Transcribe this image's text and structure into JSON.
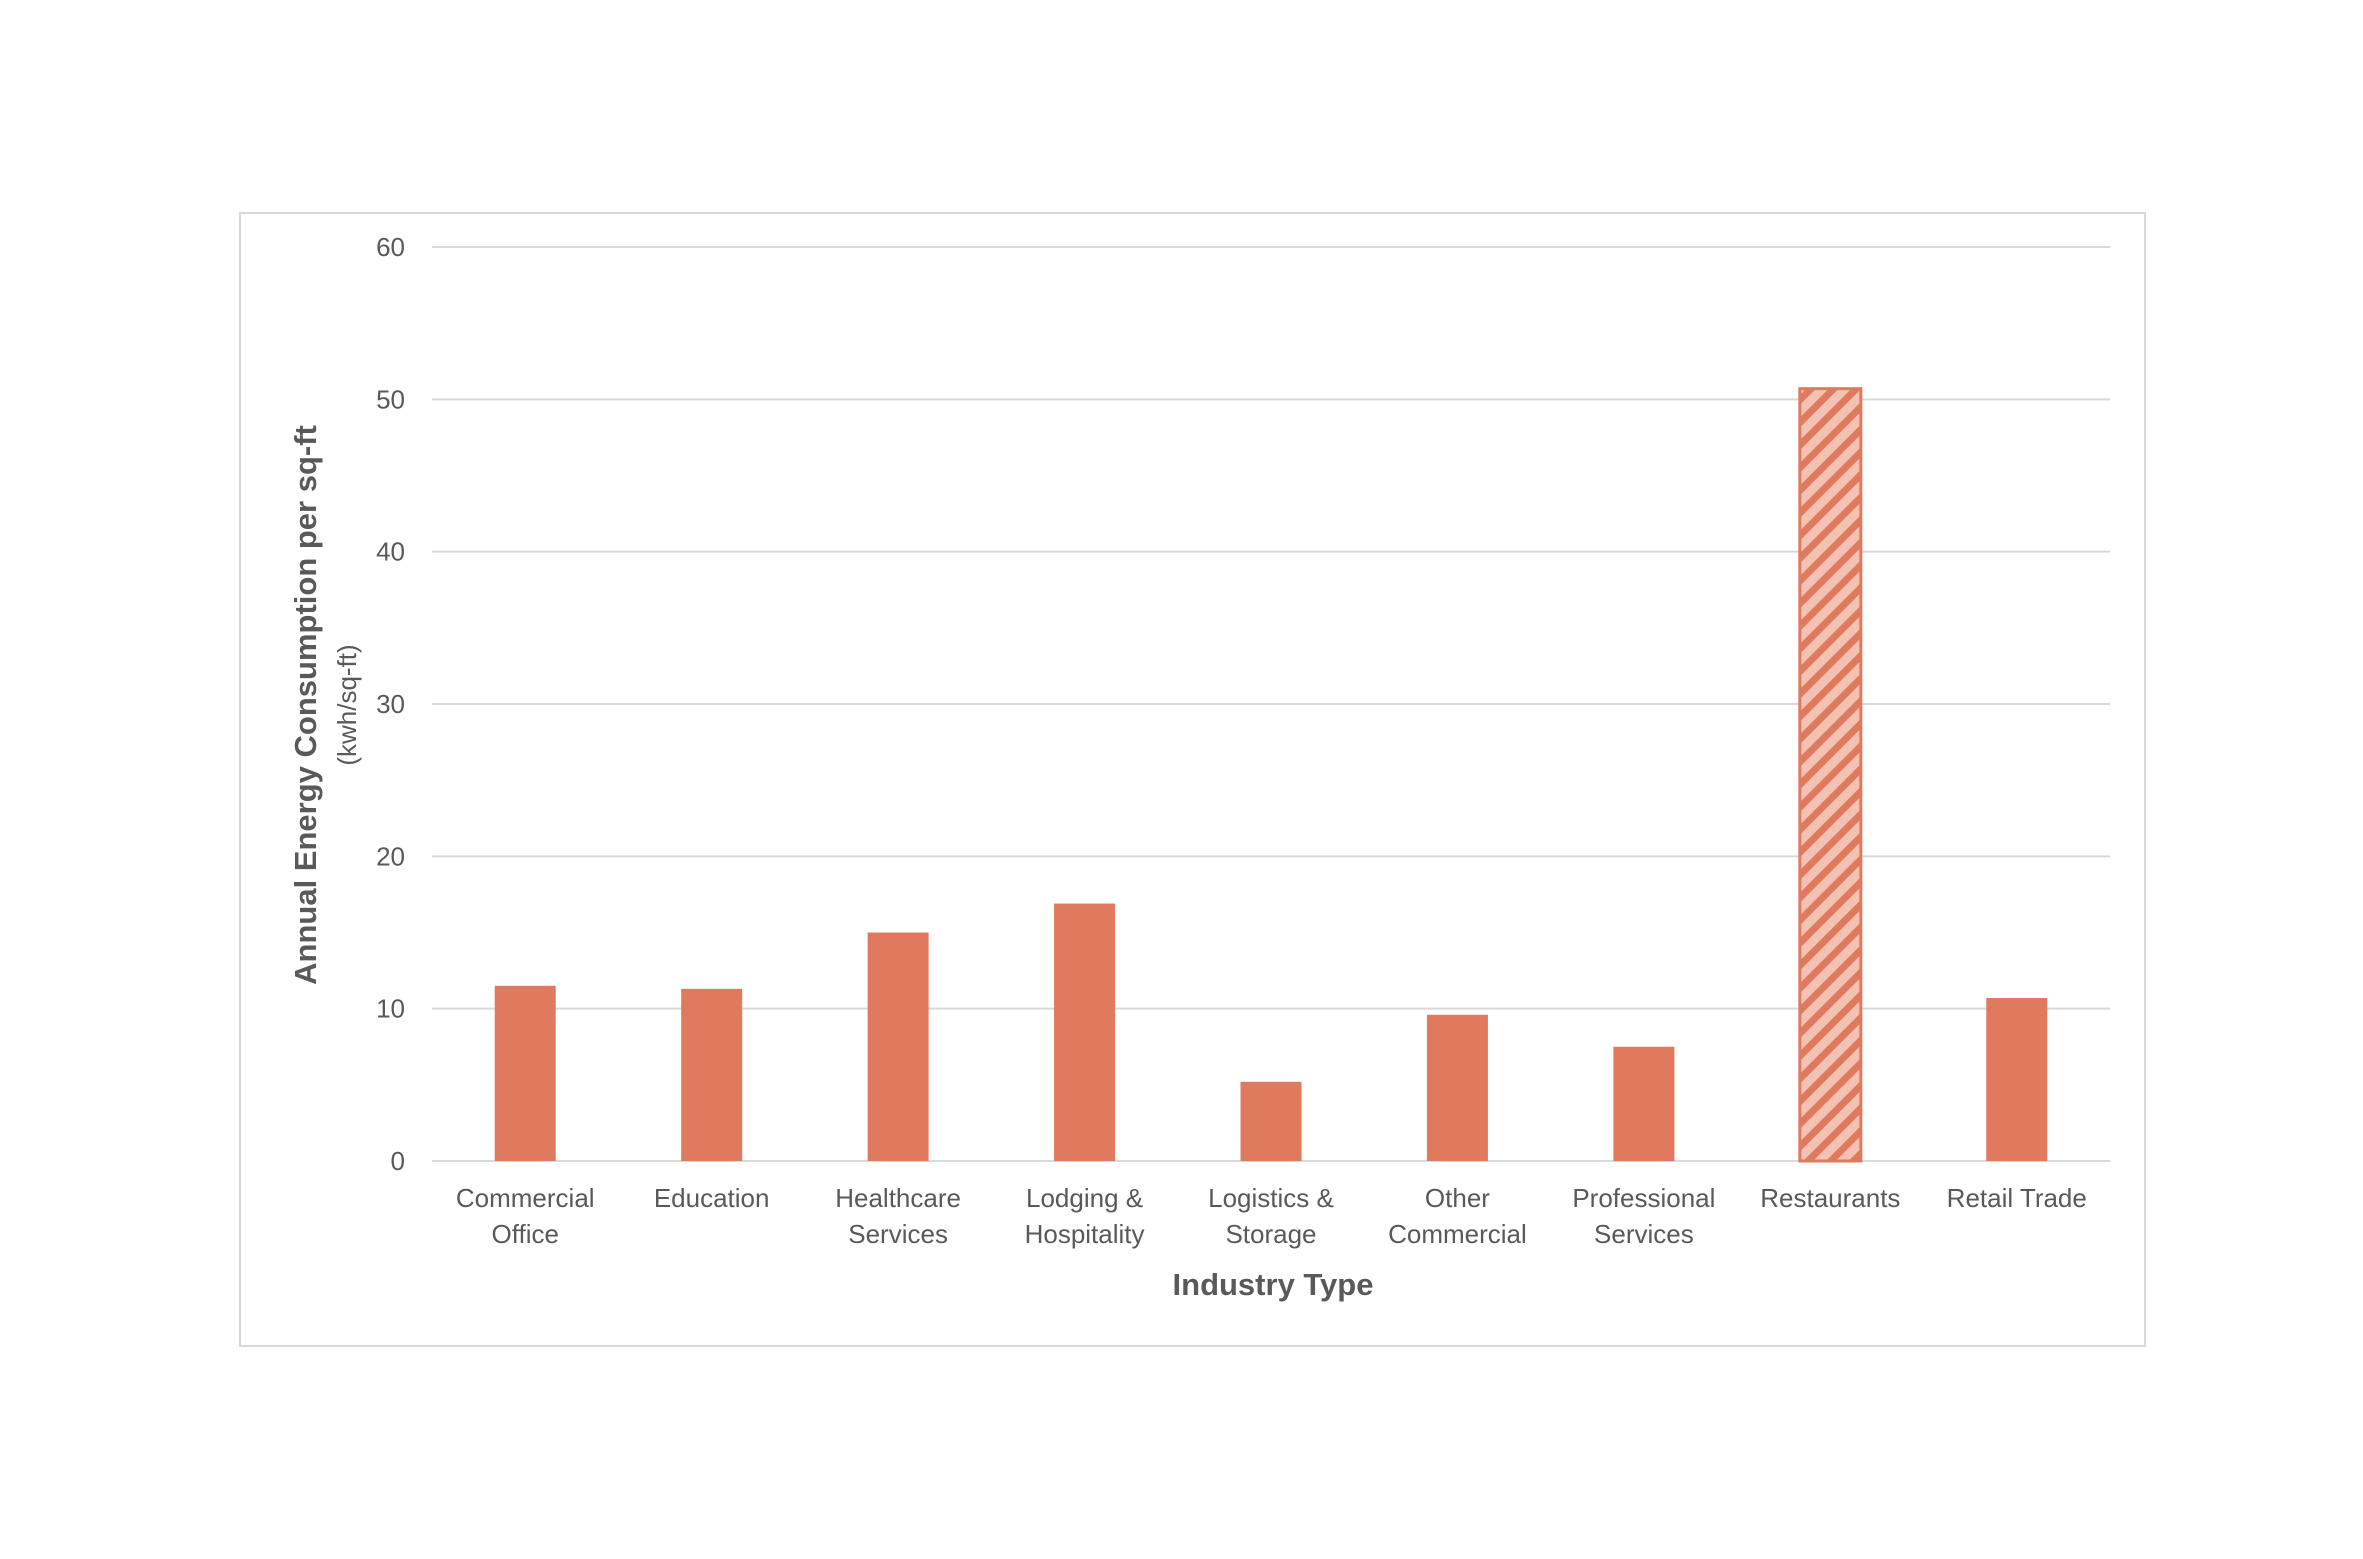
{
  "chart_data": {
    "type": "bar",
    "categories": [
      [
        "Commercial",
        "Office"
      ],
      [
        "Education"
      ],
      [
        "Healthcare",
        "Services"
      ],
      [
        "Lodging &",
        "Hospitality"
      ],
      [
        "Logistics &",
        "Storage"
      ],
      [
        "Other",
        "Commercial"
      ],
      [
        "Professional",
        "Services"
      ],
      [
        "Restaurants"
      ],
      [
        "Retail Trade"
      ]
    ],
    "values": [
      11.5,
      11.3,
      15.0,
      16.9,
      5.2,
      9.6,
      7.5,
      50.7,
      10.7
    ],
    "highlighted": [
      false,
      false,
      false,
      false,
      false,
      false,
      false,
      true,
      false
    ],
    "xlabel": "Industry Type",
    "ylabel": "Annual Energy Consumption per sq-ft",
    "ylabel_unit": "(kwh/sq-ft)",
    "ylim": [
      0,
      60
    ],
    "yticks": [
      0,
      10,
      20,
      30,
      40,
      50,
      60
    ],
    "grid": true,
    "legend": "none",
    "colors": {
      "bar": "#e07a5f",
      "highlight_stripe": "#e07a5f",
      "highlight_background": "#f4c2b3",
      "grid": "#d9d9d9",
      "text": "#595959"
    }
  }
}
